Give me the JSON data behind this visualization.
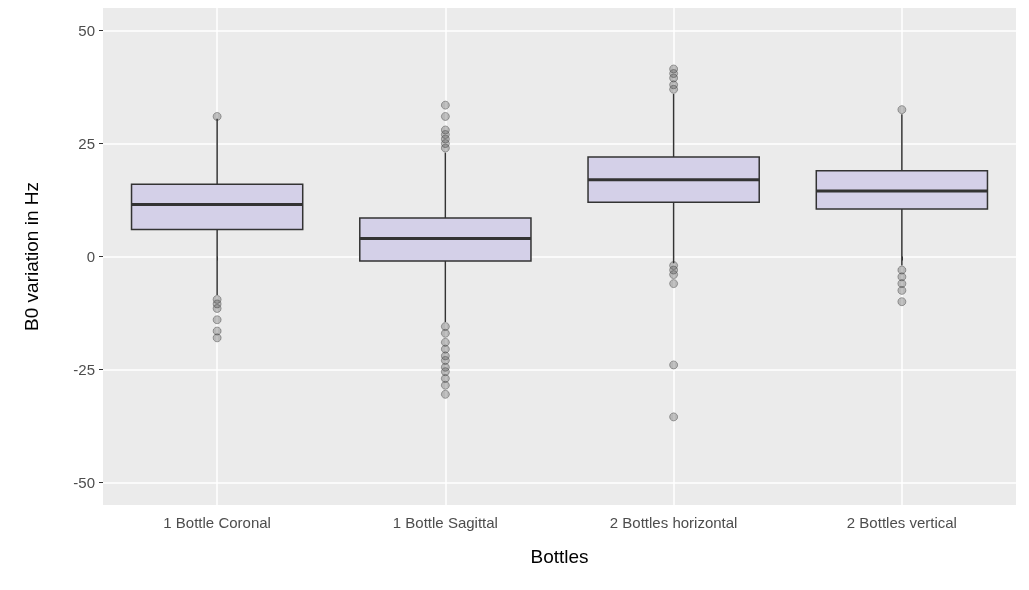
{
  "chart_data": {
    "type": "box",
    "xlabel": "Bottles",
    "ylabel": "B0 variation in Hz",
    "categories": [
      "1 Bottle Coronal",
      "1 Bottle Sagittal",
      "2 Bottles horizontal",
      "2 Bottles vertical"
    ],
    "color": "#d4d0e8",
    "boxes": [
      {
        "low": -8.5,
        "q1": 6,
        "median": 11.5,
        "q3": 16,
        "high": 30.5,
        "outliers": [
          31,
          -9.5,
          -10.5,
          -11.5,
          -14,
          -16.5,
          -18
        ]
      },
      {
        "low": -14.5,
        "q1": -1,
        "median": 4,
        "q3": 8.5,
        "high": 23,
        "outliers": [
          33.5,
          31,
          28,
          27,
          26,
          25,
          24,
          -15.5,
          -17,
          -19,
          -20.5,
          -22,
          -23,
          -24.5,
          -25.5,
          -27,
          -28.5,
          -30.5
        ]
      },
      {
        "low": -1.5,
        "q1": 12,
        "median": 17,
        "q3": 22,
        "high": 36,
        "outliers": [
          41.5,
          40.5,
          39.5,
          38,
          37,
          -2,
          -3,
          -4,
          -6,
          -24,
          -35.5
        ]
      },
      {
        "low": -2,
        "q1": 10.5,
        "median": 14.5,
        "q3": 19,
        "high": 31.5,
        "outliers": [
          32.5,
          -3,
          -4.5,
          -6,
          -7.5,
          -10
        ]
      }
    ],
    "ylim": [
      -55,
      55
    ],
    "yticks": [
      -50,
      -25,
      0,
      25,
      50
    ],
    "grid": true
  }
}
